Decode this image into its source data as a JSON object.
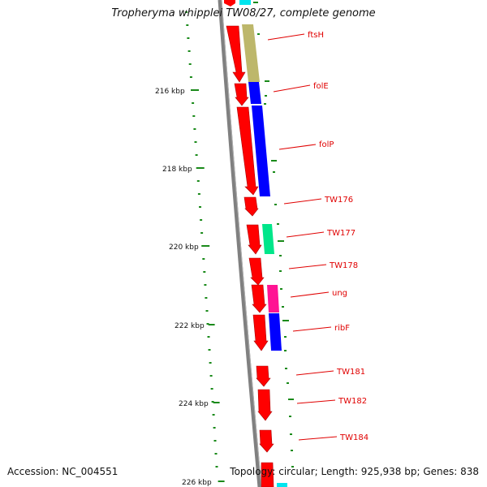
{
  "title": "Tropheryma whipplei TW08/27, complete genome",
  "footer": {
    "accession": "Accession: NC_004551",
    "summary": "Topology: circular; Length: 925,938 bp; Genes: 838"
  },
  "colors": {
    "backbone": "#808080",
    "tick": "#1a8a1a",
    "forward_gene": "#ff0000",
    "reverse_gene": "#ff0000",
    "label": "#e00000"
  },
  "scale_labels": [
    "216 kbp",
    "218 kbp",
    "220 kbp",
    "222 kbp",
    "224 kbp",
    "226 kbp"
  ],
  "genes": [
    {
      "name": "ftsH",
      "cog_color": "#bdb76b"
    },
    {
      "name": "folE",
      "cog_color": "#0000ff"
    },
    {
      "name": "folP",
      "cog_color": "#0000ff"
    },
    {
      "name": "TW176",
      "cog_color": ""
    },
    {
      "name": "TW177",
      "cog_color": "#00e68a"
    },
    {
      "name": "TW178",
      "cog_color": ""
    },
    {
      "name": "ung",
      "cog_color": "#ff1493"
    },
    {
      "name": "ribF",
      "cog_color": "#0000ff"
    },
    {
      "name": "TW181",
      "cog_color": ""
    },
    {
      "name": "TW182",
      "cog_color": ""
    },
    {
      "name": "TW184",
      "cog_color": ""
    }
  ]
}
